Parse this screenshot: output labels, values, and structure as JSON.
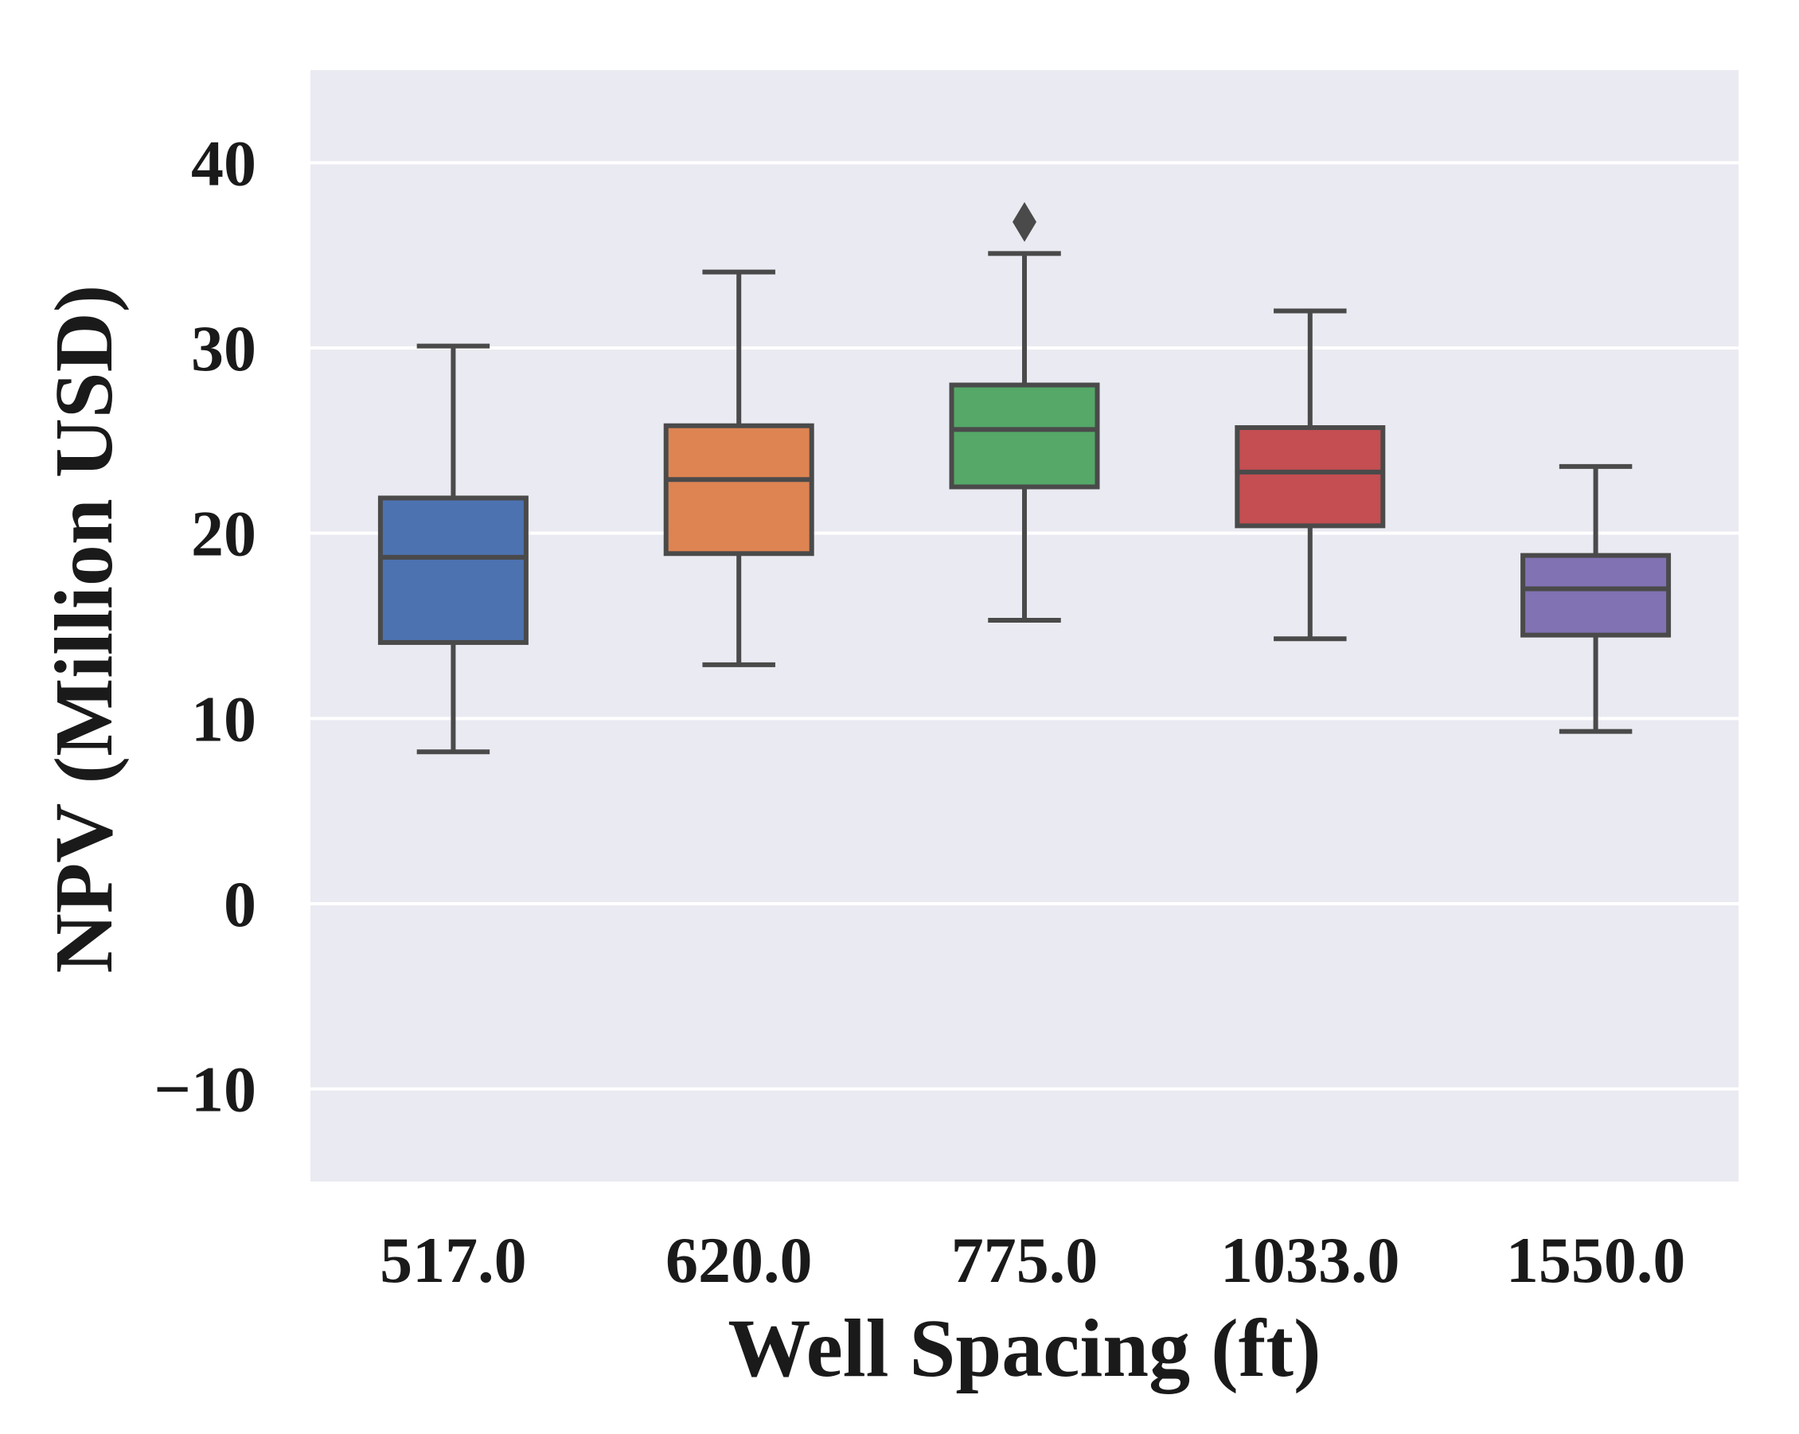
{
  "chart_data": {
    "type": "box",
    "title": "",
    "xlabel": "Well Spacing (ft)",
    "ylabel": "NPV (Million USD)",
    "ylim": [
      -15,
      45
    ],
    "yticks": [
      -10,
      0,
      10,
      20,
      30,
      40
    ],
    "ytick_labels": [
      "−10",
      "0",
      "10",
      "20",
      "30",
      "40"
    ],
    "grid": true,
    "categories": [
      "517.0",
      "620.0",
      "775.0",
      "1033.0",
      "1550.0"
    ],
    "series": [
      {
        "name": "517.0",
        "whisker_low": 8.2,
        "q1": 14.1,
        "median": 18.7,
        "q3": 21.9,
        "whisker_high": 30.1,
        "outliers": [],
        "color": "#4c72b0"
      },
      {
        "name": "620.0",
        "whisker_low": 12.9,
        "q1": 18.9,
        "median": 22.9,
        "q3": 25.8,
        "whisker_high": 34.1,
        "outliers": [],
        "color": "#dd8452"
      },
      {
        "name": "775.0",
        "whisker_low": 15.3,
        "q1": 22.5,
        "median": 25.6,
        "q3": 28.0,
        "whisker_high": 35.1,
        "outliers": [
          36.8
        ],
        "color": "#55a868"
      },
      {
        "name": "1033.0",
        "whisker_low": 14.3,
        "q1": 20.4,
        "median": 23.3,
        "q3": 25.7,
        "whisker_high": 32.0,
        "outliers": [],
        "color": "#c44e52"
      },
      {
        "name": "1550.0",
        "whisker_low": 9.3,
        "q1": 14.5,
        "median": 17.0,
        "q3": 18.8,
        "whisker_high": 23.6,
        "outliers": [],
        "color": "#8172b3"
      }
    ],
    "colors": {
      "plot_background": "#eaeaf2",
      "grid": "#ffffff",
      "box_edge": "#4a4a4a",
      "text": "#1a1a1a",
      "box_fill_517": "#4c72b0",
      "box_fill_620": "#dd8452",
      "box_fill_775": "#55a868",
      "box_fill_1033": "#c44e52",
      "box_fill_1550": "#8172b3"
    }
  }
}
